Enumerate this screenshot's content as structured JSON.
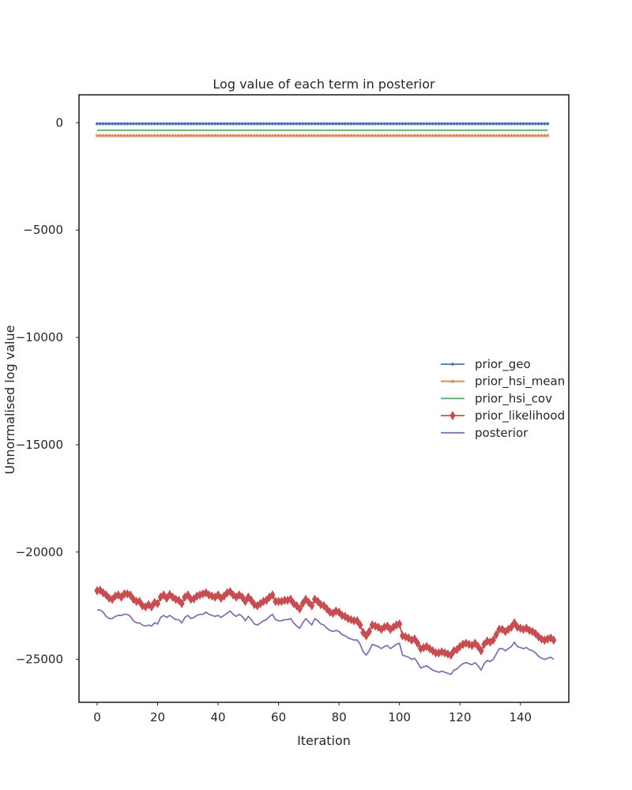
{
  "chart_data": {
    "type": "line",
    "title": "Log value of each term in posterior",
    "xlabel": "Iteration",
    "ylabel": "Unnormalised log value",
    "xlim": [
      -6,
      156
    ],
    "ylim": [
      -27000,
      1300
    ],
    "xticks": [
      0,
      20,
      40,
      60,
      80,
      100,
      120,
      140
    ],
    "yticks": [
      0,
      -5000,
      -10000,
      -15000,
      -20000,
      -25000
    ],
    "ytick_labels": [
      "0",
      "−5000",
      "−10000",
      "−15000",
      "−20000",
      "−25000"
    ],
    "grid": false,
    "legend_position": "center-right",
    "series": [
      {
        "name": "prior_geo",
        "color": "#4c72b0",
        "marker": "point",
        "values": [
          -50,
          -50,
          -50,
          -50,
          -50,
          -50,
          -50,
          -50,
          -50,
          -50,
          -50,
          -50,
          -50,
          -50,
          -50,
          -50,
          -50,
          -50,
          -50,
          -50,
          -50,
          -50,
          -50,
          -50,
          -50,
          -50,
          -50,
          -50,
          -50,
          -50,
          -50,
          -50,
          -50,
          -50,
          -50,
          -50,
          -50,
          -50,
          -50,
          -50,
          -50,
          -50,
          -50,
          -50,
          -50,
          -50,
          -50,
          -50,
          -50,
          -50,
          -50,
          -50,
          -50,
          -50,
          -50,
          -50,
          -50,
          -50,
          -50,
          -50,
          -50,
          -50,
          -50,
          -50,
          -50,
          -50,
          -50,
          -50,
          -50,
          -50,
          -50,
          -50,
          -50,
          -50,
          -50,
          -50,
          -50,
          -50,
          -50,
          -50,
          -50,
          -50,
          -50,
          -50,
          -50,
          -50,
          -50,
          -50,
          -50,
          -50,
          -50,
          -50,
          -50,
          -50,
          -50,
          -50,
          -50,
          -50,
          -50,
          -50,
          -50,
          -50,
          -50,
          -50,
          -50,
          -50,
          -50,
          -50,
          -50,
          -50,
          -50,
          -50,
          -50,
          -50,
          -50,
          -50,
          -50,
          -50,
          -50,
          -50,
          -50,
          -50,
          -50,
          -50,
          -50,
          -50,
          -50,
          -50,
          -50,
          -50,
          -50,
          -50,
          -50,
          -50,
          -50,
          -50,
          -50,
          -50,
          -50,
          -50,
          -50,
          -50,
          -50,
          -50,
          -50,
          -50,
          -50,
          -50,
          -50,
          -50
        ]
      },
      {
        "name": "prior_hsi_mean",
        "color": "#dd8452",
        "marker": "star",
        "values": [
          -600,
          -600,
          -600,
          -600,
          -600,
          -600,
          -600,
          -600,
          -600,
          -600,
          -600,
          -600,
          -600,
          -600,
          -600,
          -600,
          -600,
          -600,
          -600,
          -600,
          -600,
          -600,
          -600,
          -600,
          -600,
          -600,
          -600,
          -600,
          -600,
          -600,
          -600,
          -600,
          -600,
          -600,
          -600,
          -600,
          -600,
          -600,
          -600,
          -600,
          -600,
          -600,
          -600,
          -600,
          -600,
          -600,
          -600,
          -600,
          -600,
          -600,
          -600,
          -600,
          -600,
          -600,
          -600,
          -600,
          -600,
          -600,
          -600,
          -600,
          -600,
          -600,
          -600,
          -600,
          -600,
          -600,
          -600,
          -600,
          -600,
          -600,
          -600,
          -600,
          -600,
          -600,
          -600,
          -600,
          -600,
          -600,
          -600,
          -600,
          -600,
          -600,
          -600,
          -600,
          -600,
          -600,
          -600,
          -600,
          -600,
          -600,
          -600,
          -600,
          -600,
          -600,
          -600,
          -600,
          -600,
          -600,
          -600,
          -600,
          -600,
          -600,
          -600,
          -600,
          -600,
          -600,
          -600,
          -600,
          -600,
          -600,
          -600,
          -600,
          -600,
          -600,
          -600,
          -600,
          -600,
          -600,
          -600,
          -600,
          -600,
          -600,
          -600,
          -600,
          -600,
          -600,
          -600,
          -600,
          -600,
          -600,
          -600,
          -600,
          -600,
          -600,
          -600,
          -600,
          -600,
          -600,
          -600,
          -600,
          -600,
          -600,
          -600,
          -600,
          -600,
          -600,
          -600,
          -600,
          -600,
          -600
        ]
      },
      {
        "name": "prior_hsi_cov",
        "color": "#55a868",
        "marker": "none",
        "values": [
          -350,
          -350,
          -350,
          -350,
          -350,
          -350,
          -350,
          -350,
          -350,
          -350,
          -350,
          -350,
          -350,
          -350,
          -350,
          -350,
          -350,
          -350,
          -350,
          -350,
          -350,
          -350,
          -350,
          -350,
          -350,
          -350,
          -350,
          -350,
          -350,
          -350,
          -350,
          -350,
          -350,
          -350,
          -350,
          -350,
          -350,
          -350,
          -350,
          -350,
          -350,
          -350,
          -350,
          -350,
          -350,
          -350,
          -350,
          -350,
          -350,
          -350,
          -350,
          -350,
          -350,
          -350,
          -350,
          -350,
          -350,
          -350,
          -350,
          -350,
          -350,
          -350,
          -350,
          -350,
          -350,
          -350,
          -350,
          -350,
          -350,
          -350,
          -350,
          -350,
          -350,
          -350,
          -350,
          -350,
          -350,
          -350,
          -350,
          -350,
          -350,
          -350,
          -350,
          -350,
          -350,
          -350,
          -350,
          -350,
          -350,
          -350,
          -350,
          -350,
          -350,
          -350,
          -350,
          -350,
          -350,
          -350,
          -350,
          -350,
          -350,
          -350,
          -350,
          -350,
          -350,
          -350,
          -350,
          -350,
          -350,
          -350,
          -350,
          -350,
          -350,
          -350,
          -350,
          -350,
          -350,
          -350,
          -350,
          -350,
          -350,
          -350,
          -350,
          -350,
          -350,
          -350,
          -350,
          -350,
          -350,
          -350,
          -350,
          -350,
          -350,
          -350,
          -350,
          -350,
          -350,
          -350,
          -350,
          -350,
          -350,
          -350,
          -350,
          -350,
          -350,
          -350,
          -350,
          -350,
          -350,
          -350
        ]
      },
      {
        "name": "prior_likelihood",
        "color": "#c44e52",
        "marker": "diamond",
        "values": [
          -21800,
          -21780,
          -21900,
          -22000,
          -22150,
          -22200,
          -22050,
          -22000,
          -22100,
          -21950,
          -21950,
          -22000,
          -22200,
          -22300,
          -22300,
          -22500,
          -22550,
          -22450,
          -22550,
          -22350,
          -22400,
          -22100,
          -22000,
          -22150,
          -21980,
          -22100,
          -22200,
          -22250,
          -22400,
          -22100,
          -22000,
          -22200,
          -22180,
          -22050,
          -22000,
          -21950,
          -21900,
          -22000,
          -22050,
          -22100,
          -22000,
          -22150,
          -22050,
          -21900,
          -21850,
          -22000,
          -22100,
          -22000,
          -22100,
          -22300,
          -22100,
          -22250,
          -22450,
          -22500,
          -22400,
          -22300,
          -22250,
          -22100,
          -22000,
          -22300,
          -22300,
          -22300,
          -22250,
          -22250,
          -22200,
          -22400,
          -22500,
          -22650,
          -22400,
          -22200,
          -22350,
          -22500,
          -22200,
          -22300,
          -22450,
          -22500,
          -22650,
          -22800,
          -22850,
          -22750,
          -22800,
          -22950,
          -23000,
          -23100,
          -23150,
          -23200,
          -23200,
          -23400,
          -23750,
          -23900,
          -23700,
          -23400,
          -23450,
          -23500,
          -23600,
          -23500,
          -23450,
          -23600,
          -23500,
          -23400,
          -23350,
          -23900,
          -23950,
          -24000,
          -24100,
          -24050,
          -24250,
          -24500,
          -24450,
          -24400,
          -24500,
          -24600,
          -24700,
          -24700,
          -24650,
          -24700,
          -24750,
          -24800,
          -24600,
          -24550,
          -24400,
          -24300,
          -24250,
          -24300,
          -24350,
          -24250,
          -24400,
          -24600,
          -24300,
          -24150,
          -24200,
          -24100,
          -23850,
          -23600,
          -23600,
          -23700,
          -23600,
          -23500,
          -23300,
          -23500,
          -23550,
          -23600,
          -23550,
          -23650,
          -23700,
          -23800,
          -23950,
          -24050,
          -24100,
          -24050,
          -24000,
          -24100
        ]
      },
      {
        "name": "posterior",
        "color": "#8172b2",
        "marker": "none",
        "values": [
          -22700,
          -22700,
          -22800,
          -23000,
          -23100,
          -23100,
          -23000,
          -22950,
          -22950,
          -22900,
          -22900,
          -23000,
          -23200,
          -23300,
          -23300,
          -23400,
          -23450,
          -23400,
          -23450,
          -23300,
          -23350,
          -23050,
          -22950,
          -23050,
          -22950,
          -23050,
          -23150,
          -23150,
          -23300,
          -23050,
          -22950,
          -23100,
          -23050,
          -22950,
          -22900,
          -22900,
          -22800,
          -22900,
          -22950,
          -23000,
          -22950,
          -23050,
          -22950,
          -22850,
          -22750,
          -22900,
          -23000,
          -22900,
          -23000,
          -23200,
          -23000,
          -23150,
          -23350,
          -23400,
          -23300,
          -23200,
          -23150,
          -23000,
          -22900,
          -23150,
          -23200,
          -23200,
          -23150,
          -23150,
          -23100,
          -23300,
          -23450,
          -23550,
          -23300,
          -23100,
          -23250,
          -23400,
          -23100,
          -23200,
          -23350,
          -23400,
          -23550,
          -23650,
          -23700,
          -23650,
          -23700,
          -23850,
          -23900,
          -24000,
          -24050,
          -24100,
          -24100,
          -24300,
          -24650,
          -24800,
          -24600,
          -24300,
          -24350,
          -24400,
          -24500,
          -24400,
          -24350,
          -24500,
          -24400,
          -24300,
          -24250,
          -24800,
          -24850,
          -24900,
          -25000,
          -24950,
          -25150,
          -25400,
          -25350,
          -25300,
          -25400,
          -25500,
          -25550,
          -25600,
          -25550,
          -25600,
          -25650,
          -25700,
          -25500,
          -25450,
          -25300,
          -25200,
          -25150,
          -25200,
          -25250,
          -25150,
          -25300,
          -25500,
          -25200,
          -25050,
          -25100,
          -25000,
          -24750,
          -24500,
          -24500,
          -24600,
          -24500,
          -24400,
          -24200,
          -24400,
          -24450,
          -24500,
          -24450,
          -24550,
          -24600,
          -24700,
          -24850,
          -24950,
          -25000,
          -24950,
          -24900,
          -25000
        ]
      }
    ]
  }
}
